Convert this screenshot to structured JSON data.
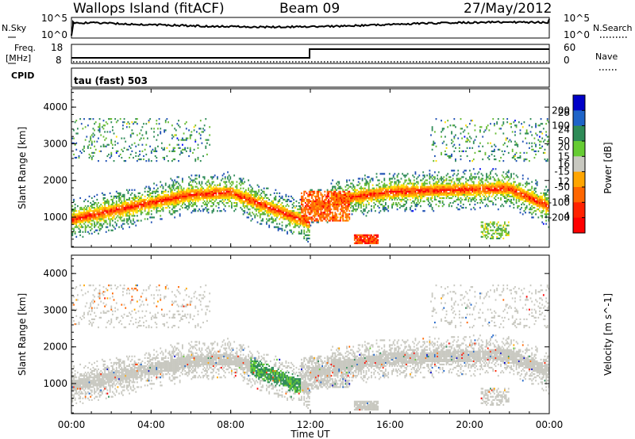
{
  "header": {
    "station": "Wallops Island (fitACF)",
    "beam": "Beam 09",
    "date": "27/May/2012"
  },
  "strip_panels": {
    "nsky": {
      "label": "N.Sky",
      "ticks": [
        "10^5",
        "10^0"
      ]
    },
    "nsearch": {
      "label": "N.Search",
      "ticks": [
        "10^5",
        "10^0"
      ]
    },
    "freq": {
      "label_line1": "Freq.",
      "label_line2": "[MHz]",
      "ticks": [
        "18",
        "8"
      ]
    },
    "nave": {
      "label": "Nave",
      "ticks": [
        "60",
        "0"
      ]
    },
    "cpid": {
      "label": "CPID",
      "value": "tau (fast) 503"
    }
  },
  "chart_data": [
    {
      "type": "heatmap",
      "title": "",
      "xlabel": "",
      "ylabel": "Slant Range [km]",
      "xlim": [
        0,
        24
      ],
      "ylim": [
        180,
        4500
      ],
      "x_ticks": [
        0,
        4,
        8,
        12,
        16,
        20,
        24
      ],
      "y_ticks": [
        1000,
        2000,
        3000,
        4000
      ],
      "y_tick_labels": [
        "1000",
        "2000",
        "3000",
        "4000"
      ],
      "colorbar": {
        "label": "Power [dB]",
        "tick_labels": [
          "28",
          "24",
          "20",
          "16",
          "12",
          "8",
          "4"
        ],
        "colors": [
          "#ff0000",
          "#ff6600",
          "#ffa500",
          "#ffdd00",
          "#66bb33",
          "#2e8b57",
          "#1e50b4",
          "#0000ff"
        ]
      }
    },
    {
      "type": "heatmap",
      "title": "",
      "xlabel": "Time UT",
      "ylabel": "Slant Range [km]",
      "xlim": [
        0,
        24
      ],
      "ylim": [
        180,
        4500
      ],
      "x_ticks": [
        0,
        4,
        8,
        12,
        16,
        20,
        24
      ],
      "x_tick_labels": [
        "00:00",
        "04:00",
        "08:00",
        "12:00",
        "16:00",
        "20:00",
        "00:00"
      ],
      "y_ticks": [
        1000,
        2000,
        3000,
        4000
      ],
      "y_tick_labels": [
        "1000",
        "2000",
        "3000",
        "4000"
      ],
      "colorbar": {
        "label": "Velocity [m s^-1]",
        "tick_labels": [
          "200",
          "100",
          "50",
          "15",
          "-15",
          "-50",
          "-100",
          "-200"
        ],
        "colors": [
          "#0000c8",
          "#1e64c8",
          "#2e8b57",
          "#66cc33",
          "#c8c8c0",
          "#ffa500",
          "#ff6600",
          "#ff2200",
          "#ff0000"
        ]
      }
    }
  ]
}
